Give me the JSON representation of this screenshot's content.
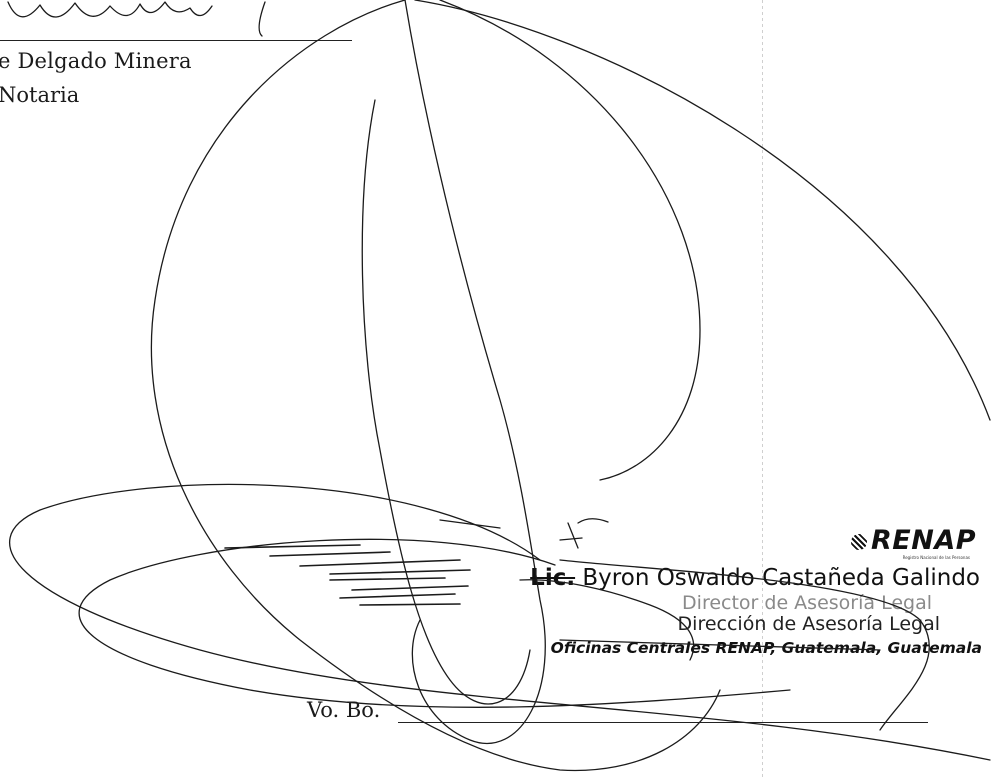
{
  "notary": {
    "name": "e Delgado Minera",
    "title": "Notaria"
  },
  "stamp": {
    "logo": "RENAP",
    "logo_subtitle": "Registro Nacional de las Personas",
    "prefix": "Lic.",
    "name": " Byron Oswaldo Castañeda Galindo",
    "role_1": "Director de Asesoría Legal",
    "role_2": "Dirección de Asesoría Legal",
    "office": "Oficinas Centrales RENAP, Guatemala, Guatemala"
  },
  "approval": {
    "label": "Vo. Bo."
  },
  "colors": {
    "ink": "#1a1a1a",
    "faded_ink": "#8a8a8a",
    "paper": "#ffffff"
  }
}
